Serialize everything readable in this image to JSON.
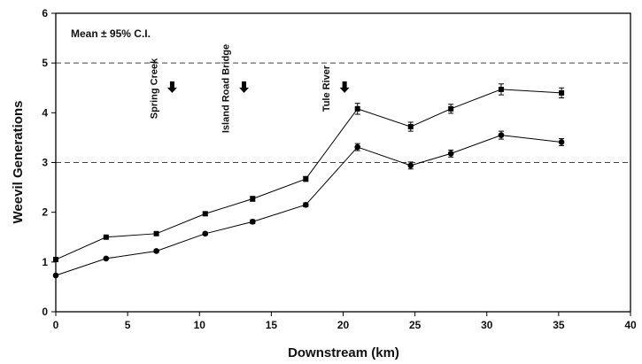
{
  "chart_data": {
    "type": "line",
    "xlabel": "Downstream (km)",
    "ylabel": "Weevil Generations",
    "xlim": [
      0,
      40
    ],
    "ylim": [
      0,
      6
    ],
    "xticks": [
      0,
      5,
      10,
      15,
      20,
      25,
      30,
      35,
      40
    ],
    "yticks": [
      0,
      1,
      2,
      3,
      4,
      5,
      6
    ],
    "reference_lines": [
      3,
      5
    ],
    "legend_text": "Mean ± 95% C.I.",
    "annotations": [
      {
        "text": "Spring Creek",
        "x": 8.1,
        "arrow_y": 4.4
      },
      {
        "text": "Island Road Bridge",
        "x": 13.1,
        "arrow_y": 4.4
      },
      {
        "text": "Tule River",
        "x": 20.1,
        "arrow_y": 4.4
      }
    ],
    "series": [
      {
        "marker": "square",
        "x": [
          0,
          3.5,
          7.0,
          10.4,
          13.7,
          17.4,
          21.0,
          24.7,
          27.5,
          31.0,
          35.2
        ],
        "y": [
          1.05,
          1.5,
          1.57,
          1.97,
          2.27,
          2.67,
          4.08,
          3.72,
          4.08,
          4.47,
          4.4
        ],
        "err": [
          0.02,
          0.02,
          0.03,
          0.03,
          0.05,
          0.05,
          0.11,
          0.09,
          0.09,
          0.11,
          0.1
        ]
      },
      {
        "marker": "circle",
        "x": [
          0,
          3.5,
          7.0,
          10.4,
          13.7,
          17.4,
          21.0,
          24.7,
          27.5,
          31.0,
          35.2
        ],
        "y": [
          0.73,
          1.07,
          1.22,
          1.57,
          1.81,
          2.15,
          3.31,
          2.94,
          3.18,
          3.55,
          3.41
        ],
        "err": [
          0.02,
          0.02,
          0.03,
          0.03,
          0.04,
          0.04,
          0.07,
          0.07,
          0.07,
          0.08,
          0.07
        ]
      }
    ]
  }
}
